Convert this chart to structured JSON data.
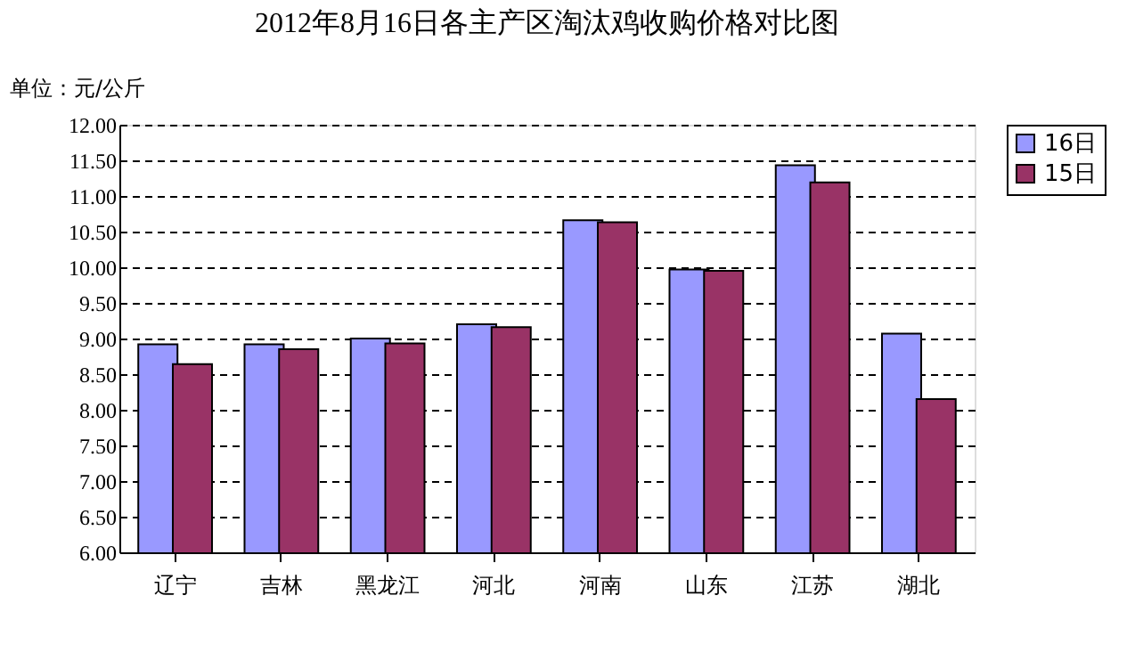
{
  "chart_data": {
    "type": "bar",
    "title": "2012年8月16日各主产区淘汰鸡收购价格对比图",
    "ylabel": "单位：元/公斤",
    "categories": [
      "辽宁",
      "吉林",
      "黑龙江",
      "河北",
      "河南",
      "山东",
      "江苏",
      "湖北"
    ],
    "series": [
      {
        "name": "16日",
        "color": "#9999ff",
        "values": [
          8.92,
          8.92,
          9.0,
          9.2,
          10.66,
          9.97,
          11.43,
          9.07
        ]
      },
      {
        "name": "15日",
        "color": "#993366",
        "values": [
          8.64,
          8.85,
          8.93,
          9.16,
          10.63,
          9.95,
          11.19,
          8.15
        ]
      }
    ],
    "ylim": [
      6,
      12
    ],
    "yticks": [
      {
        "value": 6,
        "label": "6.00"
      },
      {
        "value": 6.5,
        "label": "6.50"
      },
      {
        "value": 7,
        "label": "7.00"
      },
      {
        "value": 7.5,
        "label": "7.50"
      },
      {
        "value": 8,
        "label": "8.00"
      },
      {
        "value": 8.5,
        "label": "8.50"
      },
      {
        "value": 9,
        "label": "9.00"
      },
      {
        "value": 9.5,
        "label": "9.50"
      },
      {
        "value": 10,
        "label": "10.00"
      },
      {
        "value": 10.5,
        "label": "10.50"
      },
      {
        "value": 11,
        "label": "11.00"
      },
      {
        "value": 11.5,
        "label": "11.50"
      },
      {
        "value": 12,
        "label": "12.00"
      }
    ],
    "grid": "y",
    "legend": "right"
  }
}
